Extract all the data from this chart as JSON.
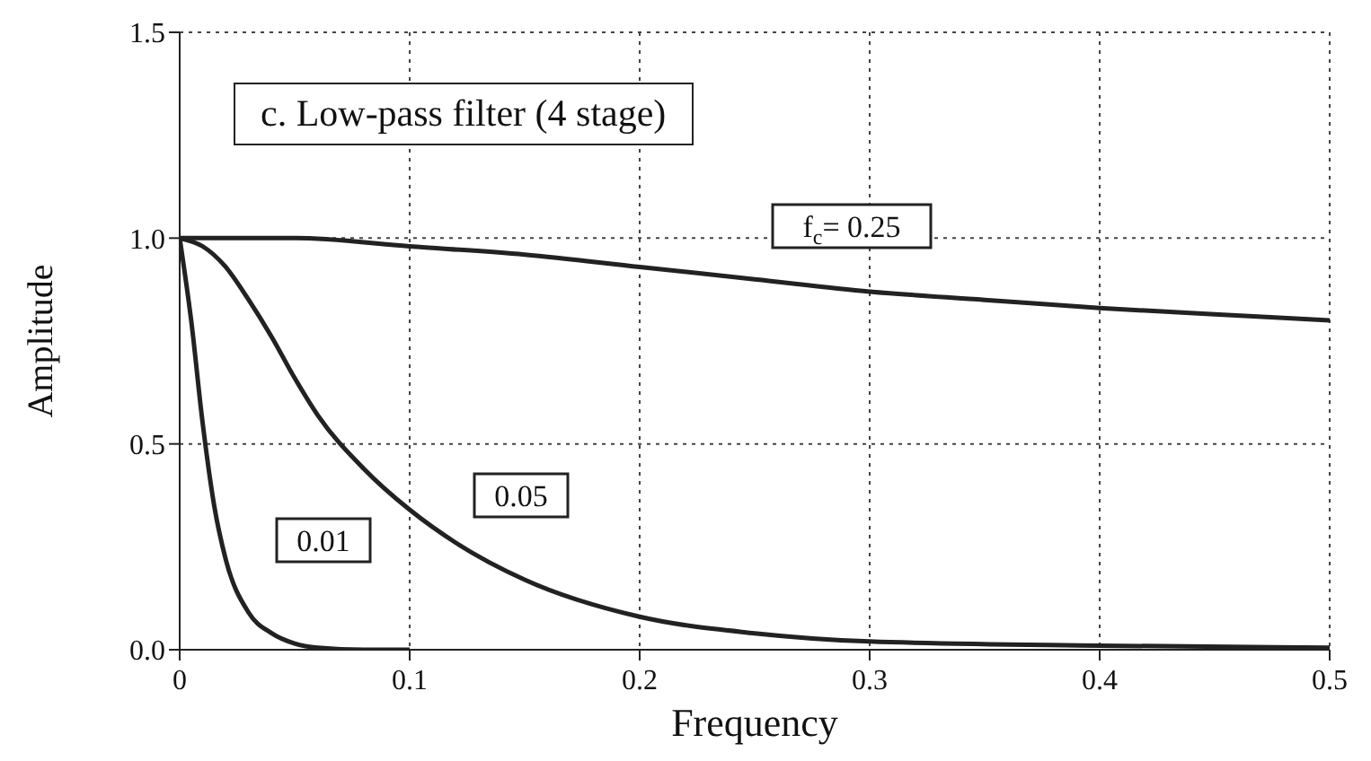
{
  "chart_data": {
    "type": "line",
    "title": "c. Low-pass filter (4 stage)",
    "xlabel": "Frequency",
    "ylabel": "Amplitude",
    "xlim": [
      0,
      0.5
    ],
    "xticks": [
      0,
      0.1,
      0.2,
      0.3,
      0.4,
      0.5
    ],
    "ylim": [
      0,
      1.5
    ],
    "yticks": [
      {
        "value": 0,
        "label": "0.0"
      },
      {
        "value": 0.5,
        "label": "0.5"
      },
      {
        "value": 1,
        "label": "1.0"
      },
      {
        "value": 1.5,
        "label": "1.5"
      }
    ],
    "grid": true,
    "line_style": "solid",
    "marker": "none",
    "series": [
      {
        "color": "#222222",
        "x": [
          0,
          0.05,
          0.1,
          0.15,
          0.2,
          0.25,
          0.3,
          0.35,
          0.4,
          0.45,
          0.5
        ],
        "values": [
          1,
          1,
          0.98,
          0.96,
          0.93,
          0.9,
          0.87,
          0.85,
          0.83,
          0.815,
          0.8
        ]
      },
      {
        "color": "#222222",
        "x": [
          0,
          0.01,
          0.02,
          0.03,
          0.04,
          0.05,
          0.06,
          0.08,
          0.1,
          0.12,
          0.15,
          0.2,
          0.25,
          0.3,
          0.4,
          0.5
        ],
        "values": [
          1,
          0.98,
          0.93,
          0.85,
          0.76,
          0.66,
          0.57,
          0.44,
          0.34,
          0.26,
          0.17,
          0.08,
          0.04,
          0.02,
          0.01,
          0.005
        ]
      },
      {
        "color": "#222222",
        "x": [
          0,
          0.005,
          0.01,
          0.015,
          0.02,
          0.03,
          0.04,
          0.05,
          0.06,
          0.08,
          0.1
        ],
        "values": [
          1,
          0.8,
          0.55,
          0.35,
          0.22,
          0.09,
          0.04,
          0.015,
          0.005,
          0,
          0
        ]
      }
    ],
    "annotations": [
      "f$_{c}$= 0.25",
      "0.05",
      "0.01"
    ]
  }
}
